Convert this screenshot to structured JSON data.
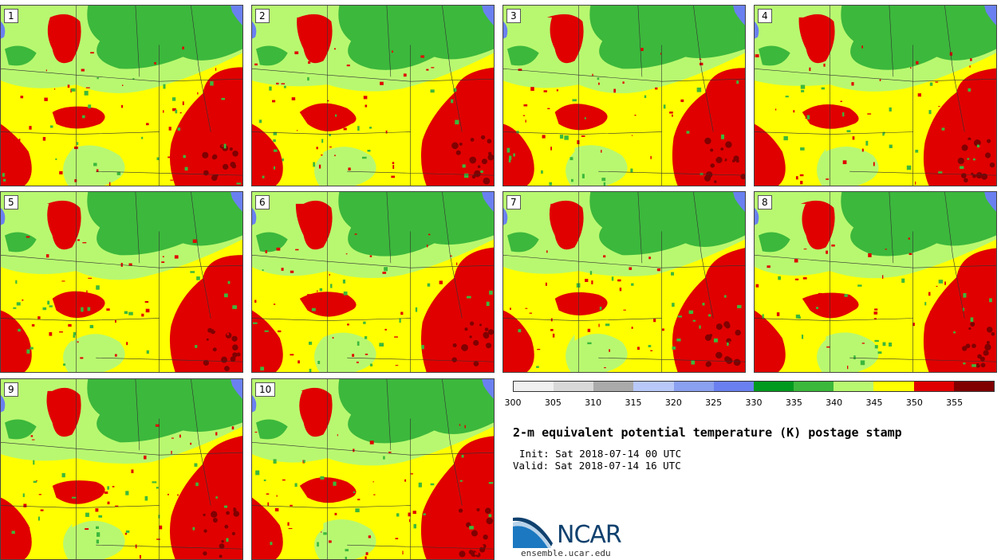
{
  "title": "2-m equivalent potential temperature (K) postage stamp",
  "init": "Init: Sat 2018-07-14 00 UTC",
  "valid": "Valid: Sat 2018-07-14 16 UTC",
  "members": [
    "1",
    "2",
    "3",
    "4",
    "5",
    "6",
    "7",
    "8",
    "9",
    "10"
  ],
  "colorbar": {
    "colors": [
      "#f0f0f0",
      "#d8d8d8",
      "#aaaaaa",
      "#b8c8f8",
      "#8aa0f0",
      "#6a80f0",
      "#009a1f",
      "#3cb83c",
      "#b8f870",
      "#ffff00",
      "#e00000",
      "#800000"
    ],
    "ticks": [
      "300",
      "305",
      "310",
      "315",
      "320",
      "325",
      "330",
      "335",
      "340",
      "345",
      "350",
      "355"
    ]
  },
  "logo": {
    "org": "NCAR",
    "site": "ensemble.ucar.edu"
  }
}
